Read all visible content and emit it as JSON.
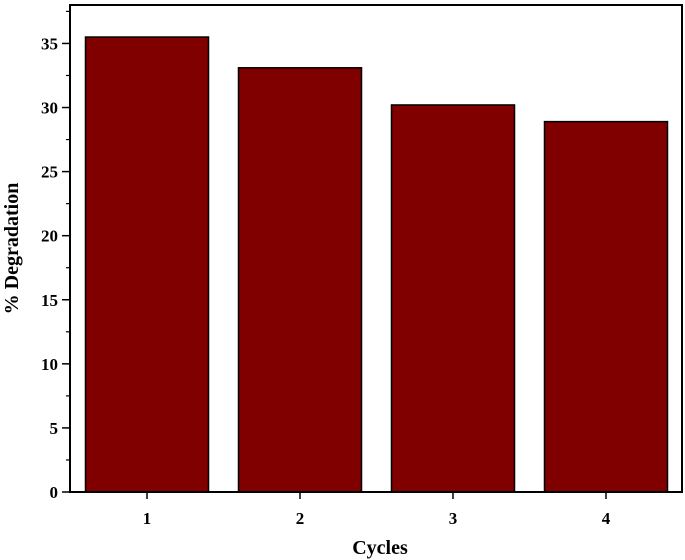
{
  "chart_data": {
    "type": "bar",
    "title": "",
    "xlabel": "Cycles",
    "ylabel": "% Degradation",
    "categories": [
      "1",
      "2",
      "3",
      "4"
    ],
    "values": [
      35.5,
      33.1,
      30.2,
      28.9
    ],
    "ylim": [
      0,
      38
    ],
    "yticks": [
      0,
      5,
      10,
      15,
      20,
      25,
      30,
      35
    ],
    "bar_color": "#800000",
    "grid": false,
    "legend": "none"
  }
}
